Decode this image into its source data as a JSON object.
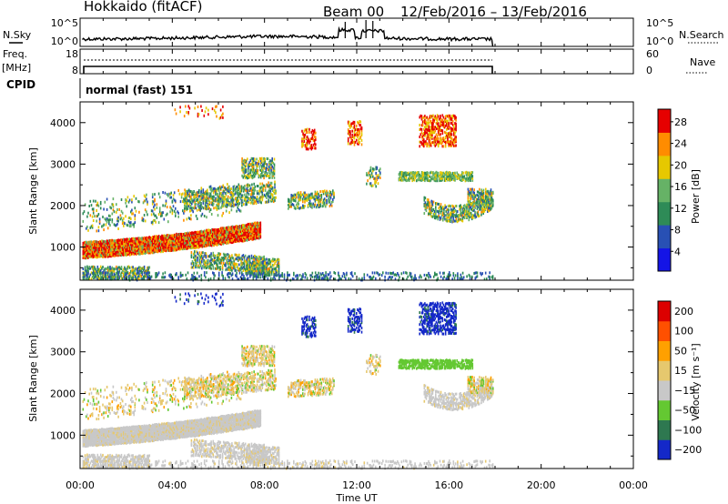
{
  "header": {
    "radar": "Hokkaido (fitACF)",
    "beam": "Beam 00",
    "period": "12/Feb/2016 – 13/Feb/2016"
  },
  "noise_panel": {
    "left_label": "N.Sky",
    "right_label": "N.Search",
    "ytick_top": "10^5",
    "ytick_bottom": "10^0"
  },
  "freq_panel": {
    "left_label_1": "Freq.",
    "left_label_2": "[MHz]",
    "right_label": "Nave",
    "left_top": "18",
    "left_bottom": "8",
    "right_top": "60",
    "right_bottom": "0"
  },
  "cpid": {
    "label": "CPID",
    "value": "normal (fast) 151"
  },
  "colors": {
    "background_axes": "#ffffff",
    "ground_scatter": "#c8c8c8"
  },
  "chart_data": [
    {
      "type": "heatmap",
      "panel": "power",
      "ylabel": "Slant Range [km]",
      "yticks": [
        "1000",
        "2000",
        "3000",
        "4000"
      ],
      "ylim": [
        200,
        4500
      ],
      "xlim_hours": [
        0,
        24
      ],
      "colorbar": {
        "label": "Power [dB]",
        "ticks": [
          "4",
          "8",
          "12",
          "16",
          "20",
          "24",
          "28"
        ],
        "range": [
          0,
          30
        ],
        "colors": [
          "#1414e6",
          "#2850b4",
          "#2e8b57",
          "#66b266",
          "#e6c800",
          "#ff8c00",
          "#e60000"
        ]
      }
    },
    {
      "type": "heatmap",
      "panel": "velocity",
      "ylabel": "Slant Range [km]",
      "yticks": [
        "1000",
        "2000",
        "3000",
        "4000"
      ],
      "ylim": [
        200,
        4500
      ],
      "xlim_hours": [
        0,
        24
      ],
      "colorbar": {
        "label": "Velocity [m s⁻¹]",
        "ticks": [
          "200",
          "100",
          "50",
          "15",
          "−15",
          "−50",
          "−100",
          "−200"
        ],
        "colors": [
          "#1428c8",
          "#2e7850",
          "#64c832",
          "#c8c8c8",
          "#e6c86e",
          "#ffa000",
          "#ff5000",
          "#dc0000"
        ]
      }
    }
  ],
  "xaxis": {
    "ticks": [
      "00:00",
      "04:00",
      "08:00",
      "12:00",
      "16:00",
      "20:00",
      "00:00"
    ],
    "label": "Time UT"
  }
}
